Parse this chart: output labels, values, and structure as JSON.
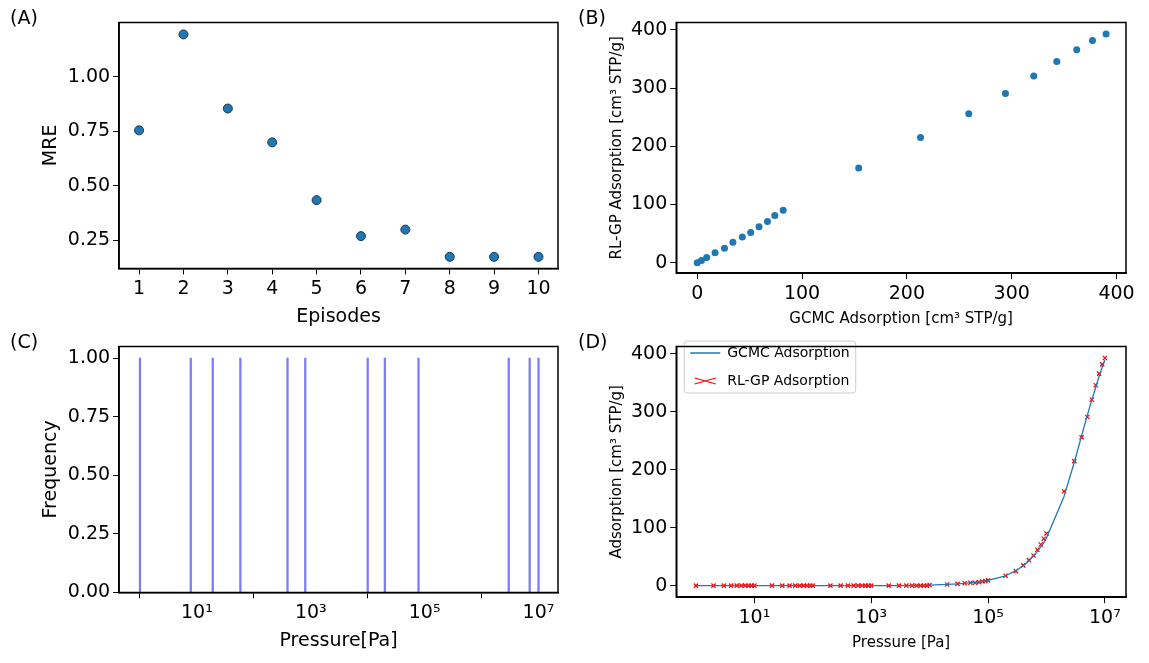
{
  "chart_data": [
    {
      "type": "scatter",
      "annotations": [
        "(A)"
      ],
      "xlabel": "Episodes",
      "ylabel": "MRE",
      "x": [
        1,
        2,
        3,
        4,
        5,
        6,
        7,
        8,
        9,
        10
      ],
      "xlim": [
        0.55,
        10.44
      ],
      "ylim": [
        0.122,
        1.25
      ],
      "xticks": [
        1,
        2,
        3,
        4,
        5,
        6,
        7,
        8,
        9,
        10
      ],
      "yticks": [
        0.25,
        {
          "value": 0.5,
          "label": "0.50"
        },
        0.75,
        {
          "value": 1,
          "label": "1.00"
        }
      ],
      "marker": "circle",
      "grid": false,
      "legend": false,
      "series": [
        {
          "color": "#1f77b4",
          "values": [
            0.755,
            1.195,
            0.855,
            0.7,
            0.435,
            0.27,
            0.3,
            0.175,
            0.175,
            0.175
          ]
        }
      ]
    },
    {
      "type": "scatter",
      "annotations": [
        "(B)"
      ],
      "xlabel": "GCMC Adsorption [cm³ STP/g]",
      "ylabel": "RL-GP Adsorption [cm³ STP/g]",
      "x": [
        0,
        4,
        9,
        17,
        26,
        34,
        43,
        51,
        59,
        67,
        74,
        82,
        154,
        213,
        259,
        294,
        321,
        343,
        362,
        377,
        390
      ],
      "xlim": [
        -20,
        409
      ],
      "ylim": [
        -18,
        413
      ],
      "xticks": [
        0,
        100,
        200,
        300,
        400
      ],
      "yticks": [
        0,
        100,
        200,
        300,
        400
      ],
      "marker": "circle",
      "grid": false,
      "legend": false,
      "series": [
        {
          "color": "#1f77b4",
          "values": [
            0,
            4,
            9,
            17,
            25,
            35,
            44,
            52,
            62,
            71,
            81,
            90,
            163,
            215,
            256,
            291,
            321,
            346,
            366,
            382,
            393
          ]
        }
      ]
    },
    {
      "type": "bar",
      "annotations": [
        "(C)"
      ],
      "xlabel": "Pressure[Pa]",
      "ylabel": "Frequency",
      "log": "x",
      "x": [
        1,
        7.8,
        19,
        58,
        390,
        800,
        10000,
        20000,
        78000,
        3000000,
        7000000,
        10000000
      ],
      "xlim": [
        0.43,
        22000000
      ],
      "ylim": [
        0,
        1.05
      ],
      "xticks": [
        {
          "value": 10,
          "label": "10¹"
        },
        {
          "value": 1000,
          "label": "10³"
        },
        {
          "value": 100000,
          "label": "10⁵"
        },
        {
          "value": 10000000,
          "label": "10⁷"
        }
      ],
      "yticks": [
        {
          "value": 0,
          "label": "0.00"
        },
        0.25,
        {
          "value": 0.5,
          "label": "0.50"
        },
        0.75,
        {
          "value": 1,
          "label": "1.00"
        }
      ],
      "grid": false,
      "legend": false,
      "series": [
        {
          "color": "#7b7bf7",
          "values": [
            1,
            1,
            1,
            1,
            1,
            1,
            1,
            1,
            1,
            1,
            1,
            1
          ]
        }
      ]
    },
    {
      "type": "line",
      "annotations": [
        "(D)"
      ],
      "xlabel": "Pressure [Pa]",
      "ylabel": "Adsorption [cm³ STP/g]",
      "log": "x",
      "x": [
        1,
        2,
        3,
        4,
        5,
        6,
        7,
        8,
        9,
        10,
        20,
        30,
        40,
        50,
        60,
        70,
        80,
        90,
        100,
        200,
        300,
        400,
        500,
        600,
        700,
        800,
        900,
        1000,
        2000,
        3000,
        4000,
        5000,
        6000,
        7000,
        8000,
        9000,
        10000,
        20000,
        30000,
        40000,
        50000,
        60000,
        70000,
        80000,
        90000,
        100000,
        200000,
        300000,
        400000,
        500000,
        600000,
        700000,
        800000,
        900000,
        1000000,
        2000000,
        3000000,
        4000000,
        5000000,
        6000000,
        7000000,
        8000000,
        9000000,
        10000000
      ],
      "xlim": [
        0.46,
        23000000
      ],
      "ylim": [
        -20,
        413
      ],
      "xticks": [
        {
          "value": 10,
          "label": "10¹"
        },
        {
          "value": 1000,
          "label": "10³"
        },
        {
          "value": 100000,
          "label": "10⁵"
        },
        {
          "value": 10000000,
          "label": "10⁷"
        }
      ],
      "yticks": [
        0,
        100,
        200,
        300,
        400
      ],
      "grid": false,
      "legend": "top left",
      "series": [
        {
          "name": "GCMC Adsorption",
          "type": "line",
          "marker": "none",
          "color": "#1f77b4",
          "values": [
            0,
            0,
            0,
            0,
            0,
            0,
            0,
            0,
            0,
            0,
            0,
            0,
            0,
            0,
            0,
            0,
            0,
            0,
            0,
            0,
            0,
            0,
            0,
            0,
            0,
            0,
            0,
            0,
            0,
            0,
            0,
            0,
            0,
            0,
            0,
            0,
            1,
            2,
            3,
            4,
            5,
            5,
            6,
            7,
            8,
            9,
            17,
            26,
            34,
            43,
            51,
            59,
            67,
            74,
            82,
            154,
            213,
            259,
            294,
            321,
            343,
            362,
            377,
            390
          ]
        },
        {
          "name": "RL-GP Adsorption",
          "type": "scatter",
          "marker": "cross",
          "color": "#ff0000",
          "values": [
            0,
            0,
            0,
            0,
            0,
            0,
            0,
            0,
            0,
            0,
            0,
            0,
            0,
            0,
            0,
            0,
            0,
            0,
            0,
            0,
            0,
            0,
            0,
            0,
            0,
            0,
            0,
            0,
            0,
            0,
            0,
            0,
            0,
            0,
            0,
            0,
            1,
            2,
            3,
            4,
            5,
            5,
            6,
            7,
            8,
            9,
            17,
            25,
            35,
            44,
            52,
            62,
            71,
            81,
            90,
            163,
            215,
            256,
            291,
            321,
            346,
            366,
            382,
            393
          ]
        }
      ]
    }
  ]
}
